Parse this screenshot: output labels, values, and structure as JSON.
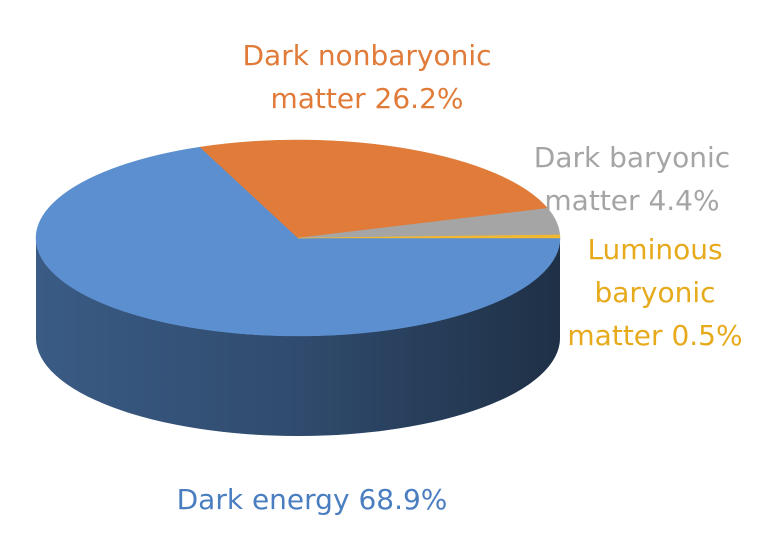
{
  "chart_data": {
    "type": "pie",
    "categories": [
      "Dark energy",
      "Dark nonbaryonic matter",
      "Dark baryonic matter",
      "Luminous baryonic matter"
    ],
    "values": [
      68.9,
      26.2,
      4.4,
      0.5
    ],
    "value_labels": [
      "68.9%",
      "26.2%",
      "4.4%",
      "0.5%"
    ],
    "colors": [
      "#5b8fd0",
      "#e07b39",
      "#a5a5a5",
      "#f2b830"
    ]
  }
}
